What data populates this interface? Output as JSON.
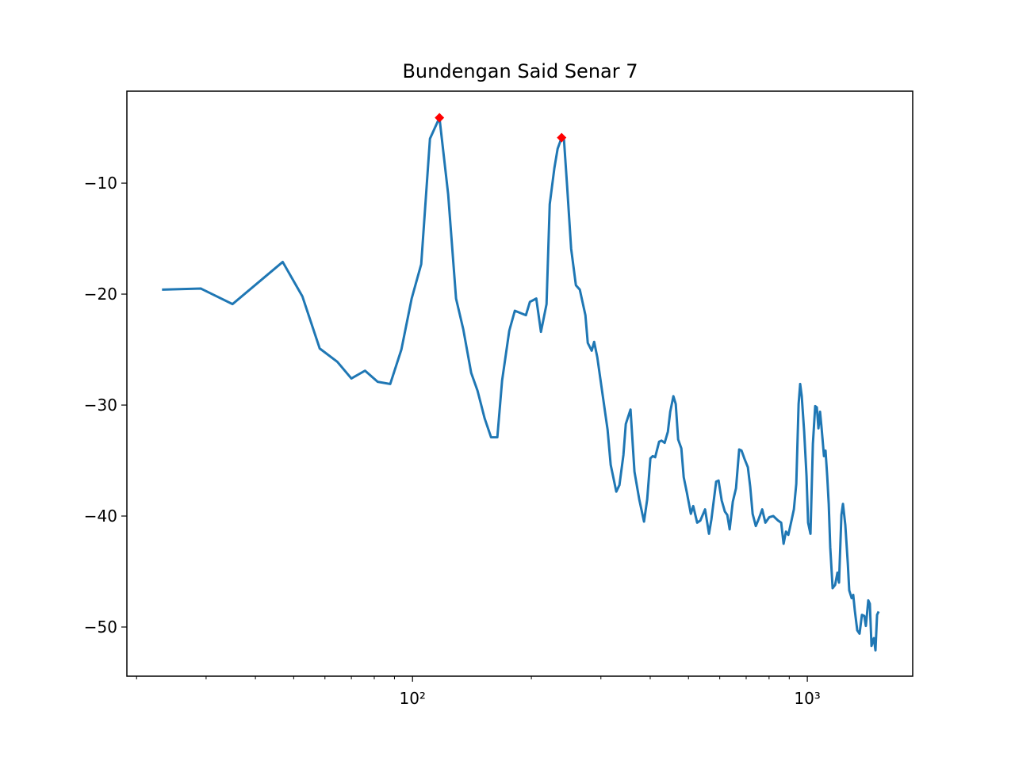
{
  "chart_data": {
    "type": "line",
    "title": "Bundengan Said Senar 7",
    "xscale": "log",
    "xlim": [
      18.9,
      1849
    ],
    "ylim": [
      -54.43,
      -1.71
    ],
    "xticks": [
      {
        "value": 100,
        "label": "10²"
      },
      {
        "value": 1000,
        "label": "10³"
      }
    ],
    "xminorticks": [
      20,
      30,
      40,
      50,
      60,
      70,
      80,
      90,
      200,
      300,
      400,
      500,
      600,
      700,
      800,
      900
    ],
    "yticks": [
      {
        "value": -50,
        "label": "−50"
      },
      {
        "value": -40,
        "label": "−40"
      },
      {
        "value": -30,
        "label": "−30"
      },
      {
        "value": -20,
        "label": "−20"
      },
      {
        "value": -10,
        "label": "−10"
      }
    ],
    "series": [
      {
        "color": "#1f77b4",
        "x": [
          23.2,
          29.1,
          35.0,
          46.9,
          52.6,
          58.2,
          64.5,
          70.0,
          75.8,
          81.6,
          87.8,
          93.7,
          99.5,
          105.2,
          110.7,
          117.0,
          123.1,
          128.9,
          134.5,
          140.8,
          146.1,
          152.3,
          158.1,
          164.0,
          168.6,
          175.8,
          181.6,
          193.7,
          198.3,
          205.8,
          211.5,
          218.5,
          222.6,
          228.8,
          233.1,
          238.6,
          241.9,
          246.4,
          252.2,
          259.3,
          265.3,
          274.1,
          277.9,
          284.4,
          288.4,
          293.8,
          303.4,
          311.9,
          317.7,
          328.2,
          334.3,
          342.1,
          346.9,
          356.6,
          364.9,
          375.2,
          385.8,
          393.0,
          400.4,
          406.0,
          411.7,
          421.3,
          427.2,
          435.2,
          443.4,
          449.5,
          457.9,
          464.2,
          470.8,
          479.6,
          486.3,
          495.4,
          507.0,
          514.0,
          526.0,
          535.8,
          550.8,
          563.6,
          571.5,
          587.6,
          595.9,
          606.9,
          618.3,
          627.0,
          635.7,
          647.6,
          659.7,
          672.0,
          681.3,
          694.1,
          707.0,
          716.9,
          726.9,
          740.5,
          754.4,
          768.7,
          783.0,
          801.3,
          820.0,
          843.0,
          858.7,
          870.7,
          882.9,
          895.1,
          911.9,
          924.6,
          937.6,
          950.4,
          959.2,
          968.0,
          981.8,
          995.4,
          1004.6,
          1018.6,
          1033,
          1047,
          1057,
          1067,
          1077,
          1087,
          1102,
          1112,
          1123,
          1133,
          1143,
          1159,
          1176,
          1192,
          1203,
          1220,
          1231,
          1248,
          1266,
          1277,
          1295,
          1307,
          1319,
          1338,
          1356,
          1375,
          1394,
          1407,
          1427,
          1440,
          1454,
          1474,
          1488,
          1502,
          1516
        ],
        "values": [
          -19.6,
          -19.5,
          -20.9,
          -17.1,
          -20.2,
          -24.9,
          -26.1,
          -27.6,
          -26.9,
          -27.9,
          -28.1,
          -25.0,
          -20.4,
          -17.3,
          -6.0,
          -4.1,
          -11.0,
          -20.4,
          -23.2,
          -27.1,
          -28.7,
          -31.2,
          -32.9,
          -32.9,
          -27.8,
          -23.3,
          -21.5,
          -21.9,
          -20.7,
          -20.4,
          -23.4,
          -20.9,
          -11.9,
          -8.6,
          -6.9,
          -5.9,
          -6.1,
          -10.3,
          -15.9,
          -19.2,
          -19.6,
          -21.9,
          -24.4,
          -25.1,
          -24.3,
          -25.7,
          -29.2,
          -32.2,
          -35.4,
          -37.8,
          -37.2,
          -34.5,
          -31.7,
          -30.4,
          -36.0,
          -38.5,
          -40.5,
          -38.5,
          -34.8,
          -34.6,
          -34.7,
          -33.3,
          -33.2,
          -33.4,
          -32.4,
          -30.6,
          -29.2,
          -29.9,
          -33.1,
          -33.9,
          -36.5,
          -37.9,
          -39.8,
          -39.1,
          -40.6,
          -40.4,
          -39.4,
          -41.6,
          -40.3,
          -36.9,
          -36.8,
          -38.6,
          -39.6,
          -39.9,
          -41.2,
          -38.7,
          -37.5,
          -34.0,
          -34.1,
          -34.9,
          -35.6,
          -37.4,
          -39.8,
          -40.9,
          -40.2,
          -39.4,
          -40.6,
          -40.1,
          -40.0,
          -40.4,
          -40.6,
          -42.5,
          -41.4,
          -41.7,
          -40.4,
          -39.4,
          -37.1,
          -29.9,
          -28.1,
          -29.2,
          -32.4,
          -36.4,
          -40.6,
          -41.6,
          -33.5,
          -30.1,
          -30.2,
          -32.1,
          -30.6,
          -32.1,
          -34.6,
          -34.1,
          -36.4,
          -38.9,
          -42.8,
          -46.5,
          -46.2,
          -45.1,
          -46.0,
          -39.9,
          -38.9,
          -40.8,
          -44.2,
          -46.7,
          -47.4,
          -47.1,
          -48.5,
          -50.3,
          -50.6,
          -48.9,
          -49.0,
          -49.9,
          -47.6,
          -47.9,
          -51.7,
          -51.0,
          -52.1,
          -48.9,
          -48.6
        ]
      }
    ],
    "peaks": {
      "color": "#ff0000",
      "marker": "diamond",
      "x": [
        117.0,
        238.6
      ],
      "values": [
        -4.1,
        -5.9
      ]
    }
  }
}
